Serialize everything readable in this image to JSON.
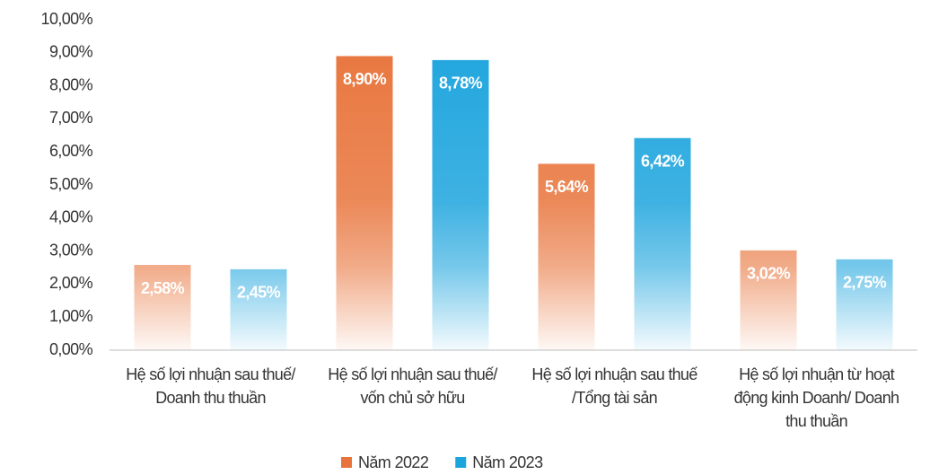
{
  "chart_data": {
    "type": "bar",
    "categories": [
      "Hệ số lợi nhuận sau thuế/ Doanh thu thuần",
      "Hệ số lợi nhuận sau thuế/ vốn chủ sở hữu",
      "Hệ số lợi nhuận sau thuế /Tổng tài sản",
      "Hệ số lợi nhuận từ hoạt động kinh Doanh/ Doanh thu thuần"
    ],
    "series": [
      {
        "name": "Năm 2022",
        "color": "#e8743b",
        "values": [
          2.58,
          8.9,
          5.64,
          3.02
        ],
        "value_labels": [
          "2,58%",
          "8,90%",
          "5,64%",
          "3,02%"
        ]
      },
      {
        "name": "Năm 2023",
        "color": "#1ca4dd",
        "values": [
          2.45,
          8.78,
          6.42,
          2.75
        ],
        "value_labels": [
          "2,45%",
          "8,78%",
          "6,42%",
          "2,75%"
        ]
      }
    ],
    "ylim": [
      0,
      10
    ],
    "yticks": [
      {
        "value": 0,
        "label": "0,00%"
      },
      {
        "value": 1,
        "label": "1,00%"
      },
      {
        "value": 2,
        "label": "2,00%"
      },
      {
        "value": 3,
        "label": "3,00%"
      },
      {
        "value": 4,
        "label": "4,00%"
      },
      {
        "value": 5,
        "label": "5,00%"
      },
      {
        "value": 6,
        "label": "6,00%"
      },
      {
        "value": 7,
        "label": "7,00%"
      },
      {
        "value": 8,
        "label": "8,00%"
      },
      {
        "value": 9,
        "label": "9,00%"
      },
      {
        "value": 10,
        "label": "10,00%"
      }
    ],
    "grid": false,
    "legend": "bottom"
  }
}
